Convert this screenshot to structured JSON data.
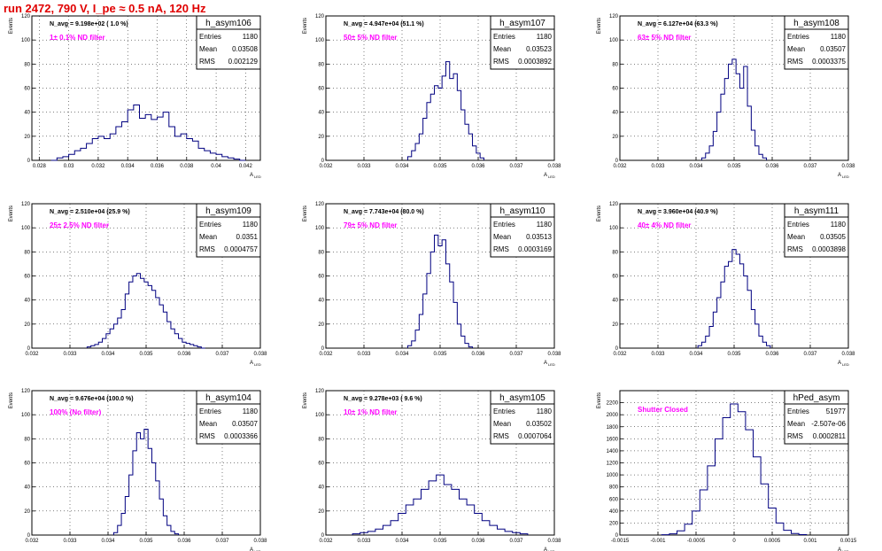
{
  "run_title": "run 2472,   790 V, I_pe ≈ 0.5 nA, 120 Hz",
  "axis_labels": {
    "y": "Events",
    "x": "A",
    "x_sub": "LED"
  },
  "stats_labels": {
    "entries": "Entries",
    "mean": "Mean",
    "rms": "RMS"
  },
  "colors": {
    "hist": "#000080",
    "annot_nav": "#000000",
    "annot_filter": "#ff00ff",
    "title_red": "#e00000"
  },
  "chart_data": [
    {
      "type": "bar",
      "title": "h_asym106",
      "nav": "N_avg = 9.198e+02 ( 1.0 %)",
      "filter": "1± 0.1% ND filter",
      "entries": "1180",
      "mean": "0.03508",
      "rms": "0.002129",
      "xlim": [
        0.0275,
        0.043
      ],
      "ylim": [
        0,
        120
      ],
      "xticks": [
        0.028,
        0.03,
        0.032,
        0.034,
        0.036,
        0.038,
        0.04,
        0.042
      ],
      "xtick_labels": [
        "0.028",
        "0.03",
        "0.032",
        "0.034",
        "0.036",
        "0.038",
        "0.04",
        "0.042"
      ],
      "yticks": [
        0,
        20,
        40,
        60,
        80,
        100,
        120
      ],
      "ytick_labels": [
        "0",
        "20",
        "40",
        "60",
        "80",
        "100",
        "120"
      ],
      "x": [
        0.029,
        0.0294,
        0.0298,
        0.0302,
        0.0306,
        0.031,
        0.0314,
        0.0318,
        0.0322,
        0.0326,
        0.033,
        0.0334,
        0.0338,
        0.0342,
        0.0346,
        0.035,
        0.0354,
        0.0358,
        0.0362,
        0.0366,
        0.037,
        0.0374,
        0.0378,
        0.0382,
        0.0386,
        0.039,
        0.0394,
        0.0398,
        0.0402,
        0.0406,
        0.041,
        0.0414,
        0.0418
      ],
      "values": [
        0,
        2,
        3,
        5,
        8,
        10,
        14,
        18,
        20,
        18,
        22,
        28,
        32,
        42,
        46,
        35,
        38,
        34,
        36,
        40,
        28,
        20,
        22,
        18,
        16,
        10,
        8,
        6,
        5,
        3,
        2,
        1,
        0
      ]
    },
    {
      "type": "bar",
      "title": "h_asym107",
      "nav": "N_avg = 4.947e+04 (51.1 %)",
      "filter": "50± 5% ND filter",
      "entries": "1180",
      "mean": "0.03523",
      "rms": "0.0003892",
      "xlim": [
        0.032,
        0.038
      ],
      "ylim": [
        0,
        120
      ],
      "xticks": [
        0.032,
        0.033,
        0.034,
        0.035,
        0.036,
        0.037,
        0.038
      ],
      "xtick_labels": [
        "0.032",
        "0.033",
        "0.034",
        "0.035",
        "0.036",
        "0.037",
        "0.038"
      ],
      "yticks": [
        0,
        20,
        40,
        60,
        80,
        100,
        120
      ],
      "ytick_labels": [
        "0",
        "20",
        "40",
        "60",
        "80",
        "100",
        "120"
      ],
      "x": [
        0.0342,
        0.0343,
        0.0344,
        0.0345,
        0.0346,
        0.0347,
        0.0348,
        0.0349,
        0.035,
        0.0351,
        0.0352,
        0.0353,
        0.0354,
        0.0355,
        0.0356,
        0.0357,
        0.0358,
        0.0359,
        0.036,
        0.0361
      ],
      "values": [
        3,
        8,
        14,
        22,
        35,
        48,
        55,
        62,
        60,
        70,
        82,
        68,
        72,
        58,
        42,
        30,
        22,
        12,
        6,
        2
      ]
    },
    {
      "type": "bar",
      "title": "h_asym108",
      "nav": "N_avg = 6.127e+04 (63.3 %)",
      "filter": "63± 5% ND filter",
      "entries": "1180",
      "mean": "0.03507",
      "rms": "0.0003375",
      "xlim": [
        0.032,
        0.038
      ],
      "ylim": [
        0,
        120
      ],
      "xticks": [
        0.032,
        0.033,
        0.034,
        0.035,
        0.036,
        0.037,
        0.038
      ],
      "xtick_labels": [
        "0.032",
        "0.033",
        "0.034",
        "0.035",
        "0.036",
        "0.037",
        "0.038"
      ],
      "yticks": [
        0,
        20,
        40,
        60,
        80,
        100,
        120
      ],
      "ytick_labels": [
        "0",
        "20",
        "40",
        "60",
        "80",
        "100",
        "120"
      ],
      "x": [
        0.0342,
        0.0343,
        0.0344,
        0.0345,
        0.0346,
        0.0347,
        0.0348,
        0.0349,
        0.035,
        0.0351,
        0.0352,
        0.0353,
        0.0354,
        0.0355,
        0.0356,
        0.0357,
        0.0358
      ],
      "values": [
        2,
        6,
        12,
        24,
        40,
        55,
        68,
        80,
        84,
        72,
        60,
        78,
        45,
        25,
        12,
        5,
        2
      ]
    },
    {
      "type": "bar",
      "title": "h_asym109",
      "nav": "N_avg = 2.510e+04 (25.9 %)",
      "filter": "25± 2.5% ND filter",
      "entries": "1180",
      "mean": "0.0351",
      "rms": "0.0004757",
      "xlim": [
        0.032,
        0.038
      ],
      "ylim": [
        0,
        120
      ],
      "xticks": [
        0.032,
        0.033,
        0.034,
        0.035,
        0.036,
        0.037,
        0.038
      ],
      "xtick_labels": [
        "0.032",
        "0.033",
        "0.034",
        "0.035",
        "0.036",
        "0.037",
        "0.038"
      ],
      "yticks": [
        0,
        20,
        40,
        60,
        80,
        100,
        120
      ],
      "ytick_labels": [
        "0",
        "20",
        "40",
        "60",
        "80",
        "100",
        "120"
      ],
      "x": [
        0.0335,
        0.0336,
        0.0337,
        0.0338,
        0.0339,
        0.034,
        0.0341,
        0.0342,
        0.0343,
        0.0344,
        0.0345,
        0.0346,
        0.0347,
        0.0348,
        0.0349,
        0.035,
        0.0351,
        0.0352,
        0.0353,
        0.0354,
        0.0355,
        0.0356,
        0.0357,
        0.0358,
        0.0359,
        0.036,
        0.0361,
        0.0362,
        0.0363,
        0.0364,
        0.0365
      ],
      "values": [
        1,
        2,
        3,
        5,
        8,
        12,
        16,
        20,
        25,
        32,
        45,
        55,
        60,
        62,
        58,
        55,
        52,
        48,
        42,
        36,
        30,
        22,
        16,
        12,
        8,
        5,
        4,
        3,
        2,
        1,
        0
      ]
    },
    {
      "type": "bar",
      "title": "h_asym110",
      "nav": "N_avg = 7.743e+04 (80.0 %)",
      "filter": "79± 5% ND filter",
      "entries": "1180",
      "mean": "0.03513",
      "rms": "0.0003169",
      "xlim": [
        0.032,
        0.038
      ],
      "ylim": [
        0,
        120
      ],
      "xticks": [
        0.032,
        0.033,
        0.034,
        0.035,
        0.036,
        0.037,
        0.038
      ],
      "xtick_labels": [
        "0.032",
        "0.033",
        "0.034",
        "0.035",
        "0.036",
        "0.037",
        "0.038"
      ],
      "yticks": [
        0,
        20,
        40,
        60,
        80,
        100,
        120
      ],
      "ytick_labels": [
        "0",
        "20",
        "40",
        "60",
        "80",
        "100",
        "120"
      ],
      "x": [
        0.0342,
        0.0343,
        0.0344,
        0.0345,
        0.0346,
        0.0347,
        0.0348,
        0.0349,
        0.035,
        0.0351,
        0.0352,
        0.0353,
        0.0354,
        0.0355,
        0.0356,
        0.0357,
        0.0358
      ],
      "values": [
        2,
        6,
        15,
        28,
        45,
        62,
        80,
        94,
        85,
        90,
        70,
        55,
        38,
        20,
        10,
        4,
        1
      ]
    },
    {
      "type": "bar",
      "title": "h_asym111",
      "nav": "N_avg = 3.960e+04 (40.9 %)",
      "filter": "40± 4% ND filter",
      "entries": "1180",
      "mean": "0.03505",
      "rms": "0.0003898",
      "xlim": [
        0.032,
        0.038
      ],
      "ylim": [
        0,
        120
      ],
      "xticks": [
        0.032,
        0.033,
        0.034,
        0.035,
        0.036,
        0.037,
        0.038
      ],
      "xtick_labels": [
        "0.032",
        "0.033",
        "0.034",
        "0.035",
        "0.036",
        "0.037",
        "0.038"
      ],
      "yticks": [
        0,
        20,
        40,
        60,
        80,
        100,
        120
      ],
      "ytick_labels": [
        "0",
        "20",
        "40",
        "60",
        "80",
        "100",
        "120"
      ],
      "x": [
        0.0341,
        0.0342,
        0.0343,
        0.0344,
        0.0345,
        0.0346,
        0.0347,
        0.0348,
        0.0349,
        0.035,
        0.0351,
        0.0352,
        0.0353,
        0.0354,
        0.0355,
        0.0356,
        0.0357,
        0.0358,
        0.0359
      ],
      "values": [
        2,
        5,
        10,
        18,
        30,
        42,
        55,
        68,
        72,
        82,
        78,
        70,
        60,
        48,
        32,
        20,
        10,
        5,
        2
      ]
    },
    {
      "type": "bar",
      "title": "h_asym104",
      "nav": "N_avg = 9.676e+04 (100.0 %)",
      "filter": "100% (No filter)",
      "entries": "1180",
      "mean": "0.03507",
      "rms": "0.0003366",
      "xlim": [
        0.032,
        0.038
      ],
      "ylim": [
        0,
        120
      ],
      "xticks": [
        0.032,
        0.033,
        0.034,
        0.035,
        0.036,
        0.037,
        0.038
      ],
      "xtick_labels": [
        "0.032",
        "0.033",
        "0.034",
        "0.035",
        "0.036",
        "0.037",
        "0.038"
      ],
      "yticks": [
        0,
        20,
        40,
        60,
        80,
        100,
        120
      ],
      "ytick_labels": [
        "0",
        "20",
        "40",
        "60",
        "80",
        "100",
        "120"
      ],
      "x": [
        0.0342,
        0.0343,
        0.0344,
        0.0345,
        0.0346,
        0.0347,
        0.0348,
        0.0349,
        0.035,
        0.0351,
        0.0352,
        0.0353,
        0.0354,
        0.0355,
        0.0356,
        0.0357,
        0.0358
      ],
      "values": [
        2,
        8,
        18,
        32,
        50,
        70,
        85,
        80,
        88,
        72,
        60,
        45,
        30,
        16,
        8,
        3,
        1
      ]
    },
    {
      "type": "bar",
      "title": "h_asym105",
      "nav": "N_avg = 9.278e+03 ( 9.6 %)",
      "filter": "10± 1% ND filter",
      "entries": "1180",
      "mean": "0.03502",
      "rms": "0.0007064",
      "xlim": [
        0.032,
        0.038
      ],
      "ylim": [
        0,
        120
      ],
      "xticks": [
        0.032,
        0.033,
        0.034,
        0.035,
        0.036,
        0.037,
        0.038
      ],
      "xtick_labels": [
        "0.032",
        "0.033",
        "0.034",
        "0.035",
        "0.036",
        "0.037",
        "0.038"
      ],
      "yticks": [
        0,
        20,
        40,
        60,
        80,
        100,
        120
      ],
      "ytick_labels": [
        "0",
        "20",
        "40",
        "60",
        "80",
        "100",
        "120"
      ],
      "x": [
        0.0328,
        0.033,
        0.0332,
        0.0334,
        0.0336,
        0.0338,
        0.034,
        0.0342,
        0.0344,
        0.0346,
        0.0348,
        0.035,
        0.0352,
        0.0354,
        0.0356,
        0.0358,
        0.036,
        0.0362,
        0.0364,
        0.0366,
        0.0368,
        0.037,
        0.0372
      ],
      "values": [
        1,
        2,
        3,
        5,
        8,
        12,
        18,
        25,
        30,
        38,
        45,
        50,
        42,
        38,
        30,
        25,
        18,
        12,
        8,
        5,
        3,
        2,
        1
      ]
    },
    {
      "type": "bar",
      "title": "hPed_asym",
      "nav": "",
      "filter": "Shutter Closed",
      "entries": "51977",
      "mean": "-2.507e-06",
      "rms": "0.0002811",
      "xlim": [
        -0.0015,
        0.0015
      ],
      "ylim": [
        0,
        2400
      ],
      "xticks": [
        -0.0015,
        -0.001,
        -0.0005,
        0,
        0.0005,
        0.001,
        0.0015
      ],
      "xtick_labels": [
        "-0.0015",
        "-0.001",
        "-0.0005",
        "0",
        "0.0005",
        "0.001",
        "0.0015"
      ],
      "yticks": [
        0,
        200,
        400,
        600,
        800,
        1000,
        1200,
        1400,
        1600,
        1800,
        2000,
        2200
      ],
      "ytick_labels": [
        "0",
        "200",
        "400",
        "600",
        "800",
        "1000",
        "1200",
        "1400",
        "1600",
        "1800",
        "2000",
        "2200"
      ],
      "x": [
        -0.0009,
        -0.0008,
        -0.0007,
        -0.0006,
        -0.0005,
        -0.0004,
        -0.0003,
        -0.0002,
        -0.0001,
        0.0,
        0.0001,
        0.0002,
        0.0003,
        0.0004,
        0.0005,
        0.0006,
        0.0007,
        0.0008,
        0.0009
      ],
      "values": [
        5,
        20,
        70,
        180,
        400,
        750,
        1150,
        1600,
        1950,
        2180,
        2050,
        1750,
        1300,
        850,
        450,
        200,
        80,
        25,
        8
      ]
    }
  ]
}
